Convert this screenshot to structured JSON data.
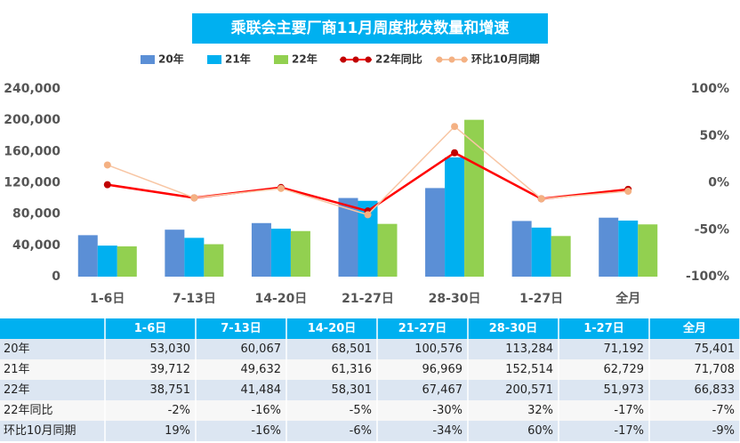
{
  "chart_data": {
    "type": "bar",
    "title": "乘联会主要厂商11月周度批发数量和增速",
    "categories": [
      "1-6日",
      "7-13日",
      "14-20日",
      "21-27日",
      "28-30日",
      "1-27日",
      "全月"
    ],
    "series": [
      {
        "name": "20年",
        "type": "bar",
        "color": "#5b8fd6",
        "values": [
          53030,
          60067,
          68501,
          100576,
          113284,
          71192,
          75401
        ]
      },
      {
        "name": "21年",
        "type": "bar",
        "color": "#00b0f0",
        "values": [
          39712,
          49632,
          61316,
          96969,
          152514,
          62729,
          71708
        ]
      },
      {
        "name": "22年",
        "type": "bar",
        "color": "#92d050",
        "values": [
          38751,
          41484,
          58301,
          67467,
          200571,
          51973,
          66833
        ]
      },
      {
        "name": "22年同比",
        "type": "line",
        "axis": "y2",
        "color": "#ff0000",
        "values": [
          -2,
          -16,
          -5,
          -30,
          32,
          -17,
          -7
        ]
      },
      {
        "name": "环比10月同期",
        "type": "line",
        "axis": "y2",
        "color": "#f8c6a4",
        "values": [
          19,
          -16,
          -6,
          -34,
          60,
          -17,
          -9
        ]
      }
    ],
    "ylim": [
      0,
      240000
    ],
    "yticks": [
      0,
      {
        "value": 40000,
        "label": "40,000"
      },
      {
        "value": 80000,
        "label": "80,000"
      },
      {
        "value": 120000,
        "label": "120,000"
      },
      {
        "value": 160000,
        "label": "160,000"
      },
      {
        "value": 200000,
        "label": "200,000"
      },
      {
        "value": 240000,
        "label": "240,000"
      }
    ],
    "y2lim": [
      -100,
      100
    ],
    "y2ticks": [
      {
        "value": -100,
        "label": "-100%"
      },
      {
        "value": -50,
        "label": "-50%"
      },
      {
        "value": 0,
        "label": "0%"
      },
      {
        "value": 50,
        "label": "50%"
      },
      {
        "value": 100,
        "label": "100%"
      }
    ],
    "grid": false,
    "legend": "top"
  },
  "table": {
    "header": [
      "1-6日",
      "7-13日",
      "14-20日",
      "21-27日",
      "28-30日",
      "1-27日",
      "全月"
    ],
    "rows": [
      {
        "label": "20年",
        "cells": [
          "53,030",
          "60,067",
          "68,501",
          "100,576",
          "113,284",
          "71,192",
          "75,401"
        ]
      },
      {
        "label": "21年",
        "cells": [
          "39,712",
          "49,632",
          "61,316",
          "96,969",
          "152,514",
          "62,729",
          "71,708"
        ]
      },
      {
        "label": "22年",
        "cells": [
          "38,751",
          "41,484",
          "58,301",
          "67,467",
          "200,571",
          "51,973",
          "66,833"
        ]
      },
      {
        "label": "22年同比",
        "cells": [
          "-2%",
          "-16%",
          "-5%",
          "-30%",
          "32%",
          "-17%",
          "-7%"
        ]
      },
      {
        "label": "环比10月同期",
        "cells": [
          "19%",
          "-16%",
          "-6%",
          "-34%",
          "60%",
          "-17%",
          "-9%"
        ]
      }
    ]
  }
}
